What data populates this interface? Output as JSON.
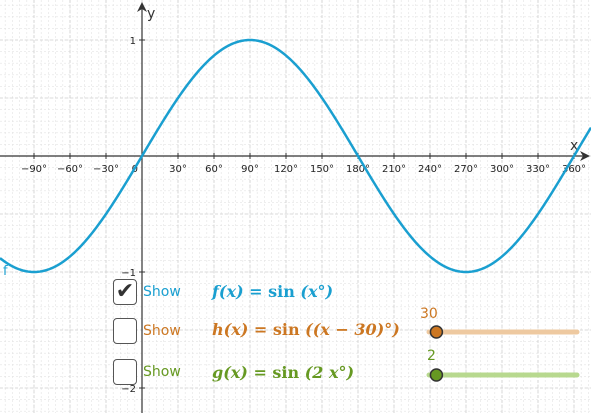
{
  "graph": {
    "axis_x_label": "x",
    "axis_y_label": "y",
    "x_ticks": [
      "−90°",
      "−60°",
      "−30°",
      "0",
      "30°",
      "60°",
      "90°",
      "120°",
      "150°",
      "180°",
      "210°",
      "240°",
      "270°",
      "300°",
      "330°",
      "360°"
    ],
    "y_ticks": [
      "1",
      "−1",
      "−2"
    ],
    "curve_label": "f",
    "curve_color": "#1a9fd0"
  },
  "controls": [
    {
      "key": "f",
      "checked": true,
      "show_label": "Show",
      "formula_lhs": "f(x) = ",
      "formula_fn": "sin",
      "formula_arg": " (x°)",
      "color": "#1a9fd0"
    },
    {
      "key": "h",
      "checked": false,
      "show_label": "Show",
      "formula_lhs": "h(x) = ",
      "formula_fn": "sin",
      "formula_arg": " ((x − 30)°)",
      "color": "#cc7722",
      "slider_value": "30",
      "slider_track_color": "#eec9a0",
      "slider_position": 0.05
    },
    {
      "key": "g",
      "checked": false,
      "show_label": "Show",
      "formula_lhs": "g(x) = ",
      "formula_fn": "sin",
      "formula_arg": " (2 x°)",
      "color": "#669922",
      "slider_value": "2",
      "slider_track_color": "#b8d98f",
      "slider_position": 0.05
    }
  ]
}
